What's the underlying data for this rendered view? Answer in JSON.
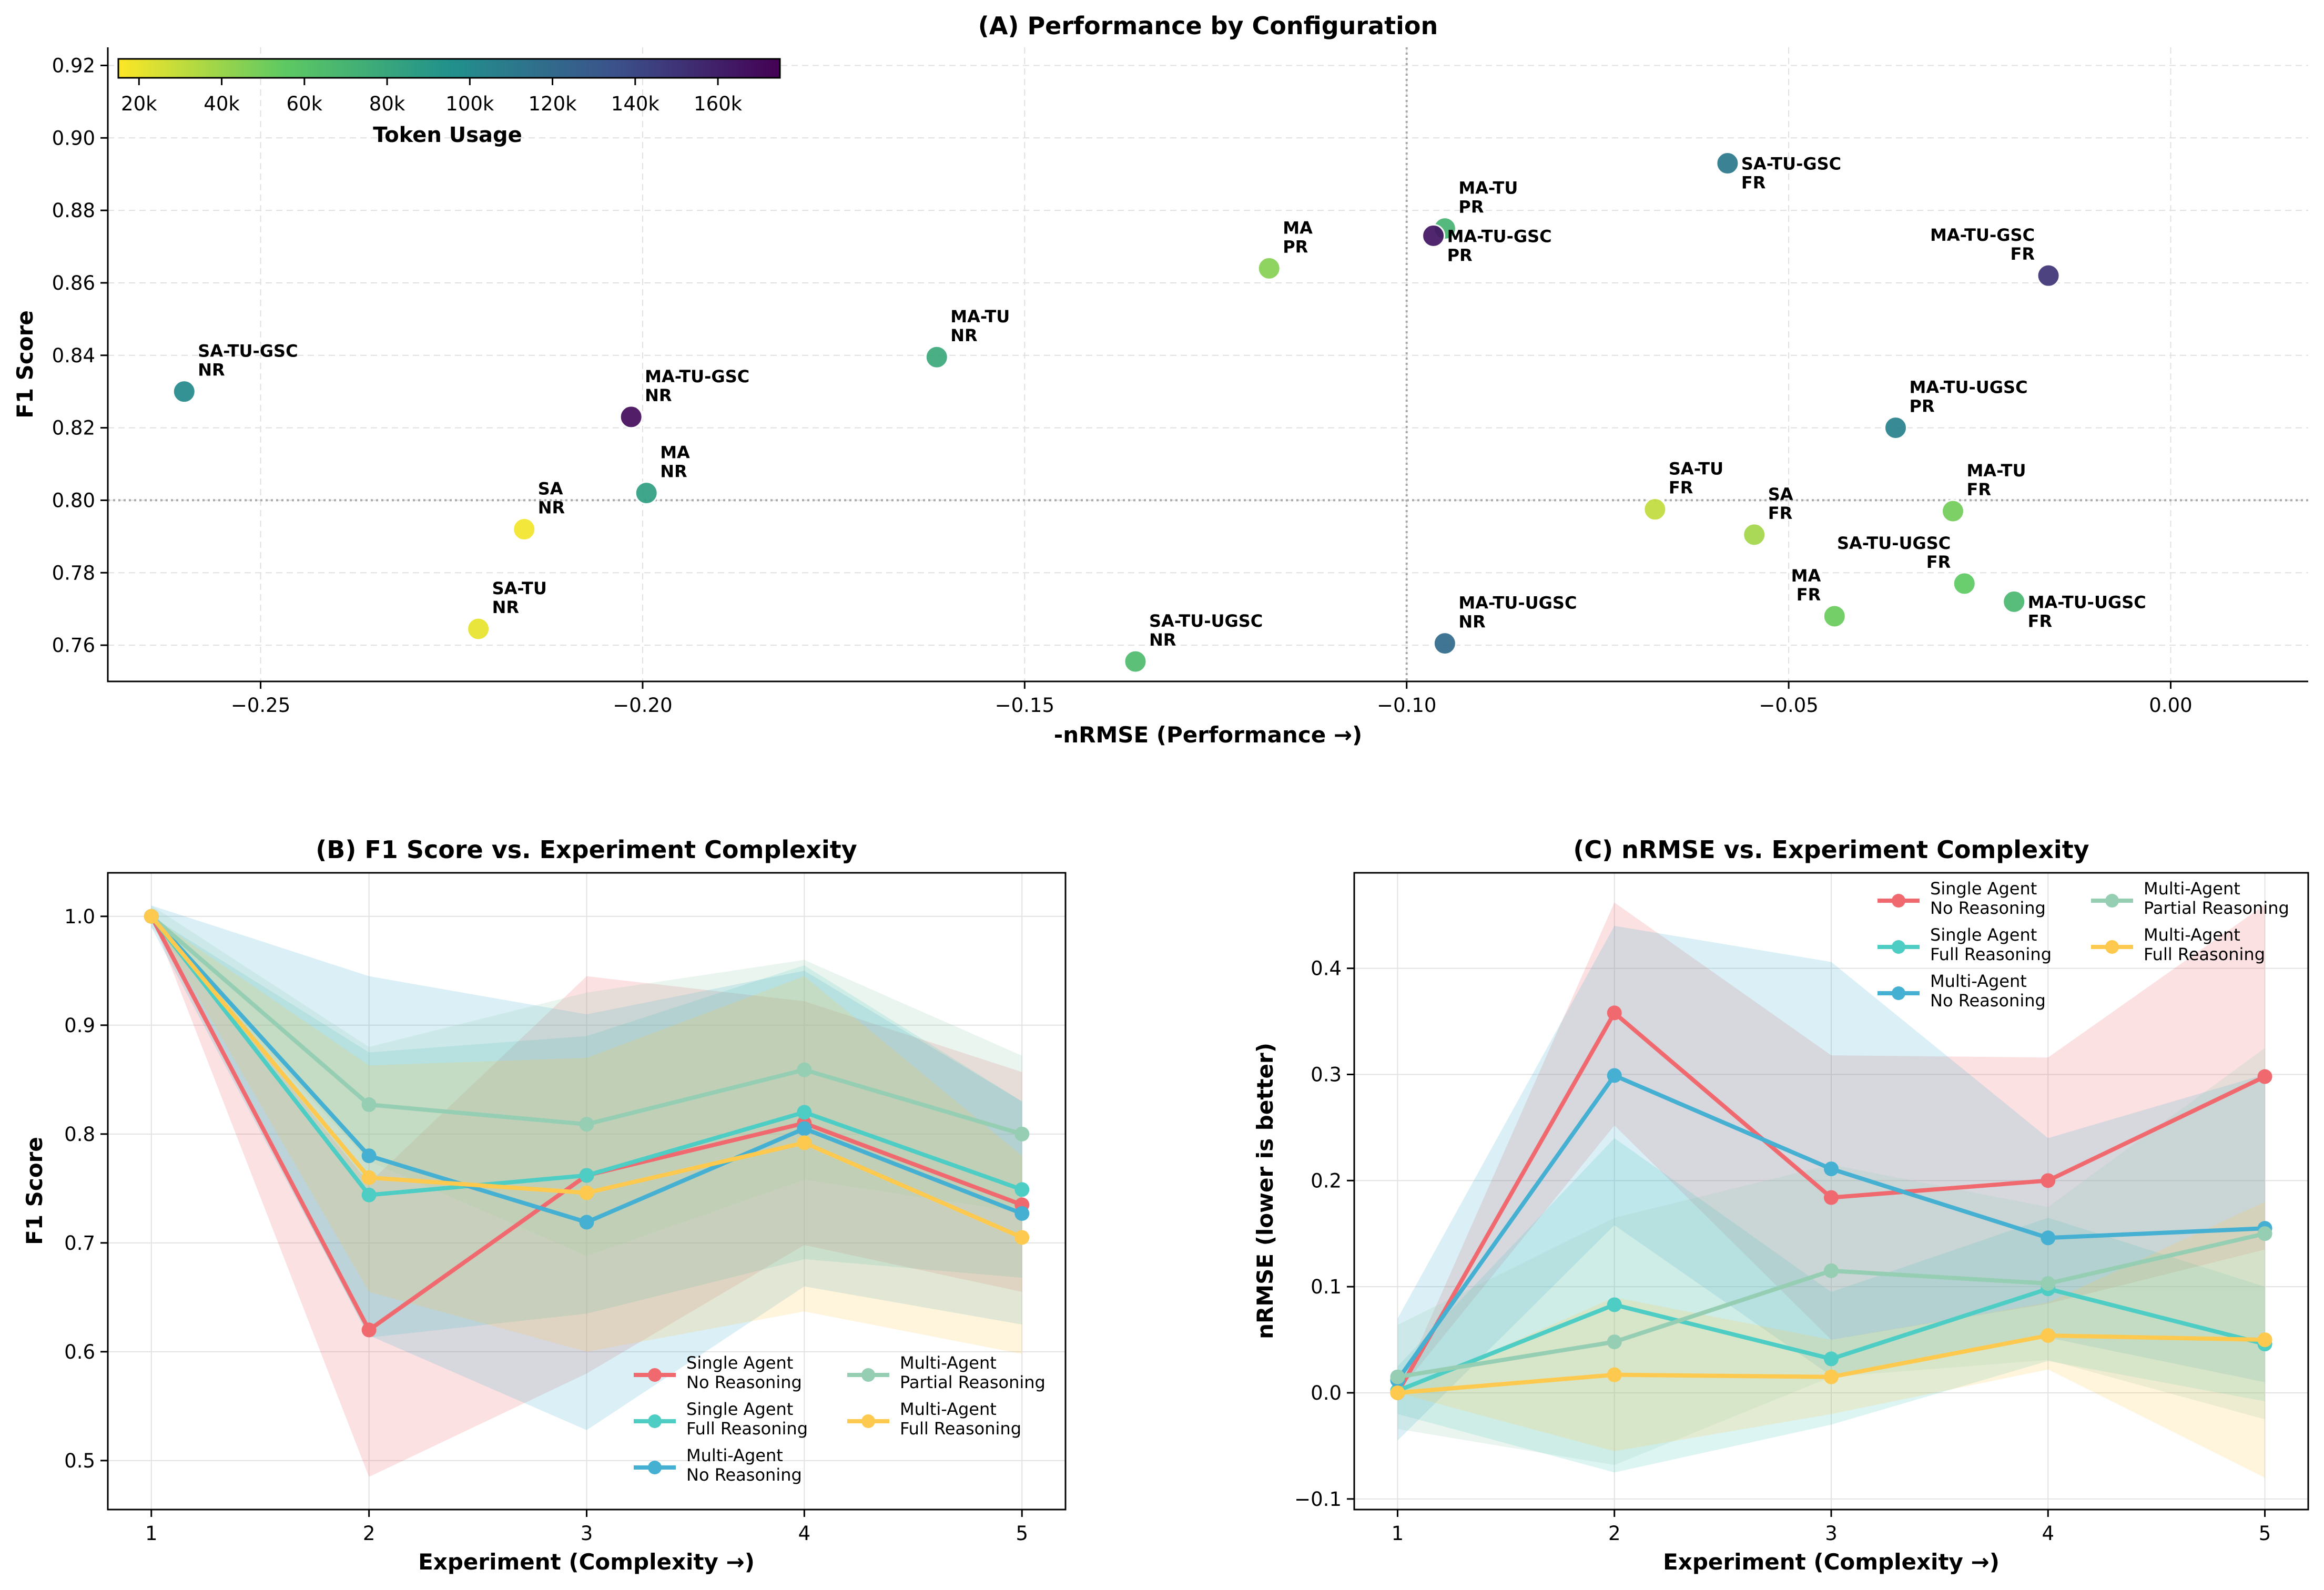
{
  "chart_data": [
    {
      "type": "scatter",
      "title": "(A) Performance by Configuration",
      "xlabel": "-nRMSE (Performance →)",
      "ylabel": "F1 Score",
      "xlim": [
        -0.27,
        0.018
      ],
      "ylim": [
        0.75,
        0.925
      ],
      "xticks": [
        -0.25,
        -0.2,
        -0.15,
        -0.1,
        -0.05,
        0.0
      ],
      "xtick_labels": [
        "−0.25",
        "−0.20",
        "−0.15",
        "−0.10",
        "−0.05",
        "0.00"
      ],
      "yticks": [
        0.76,
        0.78,
        0.8,
        0.82,
        0.84,
        0.86,
        0.88,
        0.9,
        0.92
      ],
      "ytick_labels": [
        "0.76",
        "0.78",
        "0.80",
        "0.82",
        "0.84",
        "0.86",
        "0.88",
        "0.90",
        "0.92"
      ],
      "reference_lines": {
        "x": -0.1,
        "y": 0.8
      },
      "colorbar": {
        "label": "Token Usage",
        "range": [
          15000,
          175000
        ],
        "ticks": [
          20000,
          40000,
          60000,
          80000,
          100000,
          120000,
          140000,
          160000
        ],
        "tick_labels": [
          "20k",
          "40k",
          "60k",
          "80k",
          "100k",
          "120k",
          "140k",
          "160k"
        ]
      },
      "points": [
        {
          "x": -0.26,
          "y": 0.83,
          "tokens": 100000,
          "l1": "SA-TU-GSC",
          "l2": "NR",
          "dx": 1,
          "dy": -1
        },
        {
          "x": -0.2015,
          "y": 0.823,
          "tokens": 170000,
          "l1": "MA-TU-GSC",
          "l2": "NR",
          "dx": 1,
          "dy": -1
        },
        {
          "x": -0.1995,
          "y": 0.802,
          "tokens": 85000,
          "l1": "MA",
          "l2": "NR",
          "dx": 1,
          "dy": -1
        },
        {
          "x": -0.2155,
          "y": 0.792,
          "tokens": 18000,
          "l1": "SA",
          "l2": "NR",
          "dx": 1,
          "dy": -1
        },
        {
          "x": -0.2215,
          "y": 0.7645,
          "tokens": 20000,
          "l1": "SA-TU",
          "l2": "NR",
          "dx": 1,
          "dy": -1
        },
        {
          "x": -0.1615,
          "y": 0.8395,
          "tokens": 78000,
          "l1": "MA-TU",
          "l2": "NR",
          "dx": 1,
          "dy": -1
        },
        {
          "x": -0.1355,
          "y": 0.7555,
          "tokens": 65000,
          "l1": "SA-TU-UGSC",
          "l2": "NR",
          "dx": 1,
          "dy": -1
        },
        {
          "x": -0.118,
          "y": 0.864,
          "tokens": 45000,
          "l1": "MA",
          "l2": "PR",
          "dx": 1,
          "dy": -1
        },
        {
          "x": -0.095,
          "y": 0.875,
          "tokens": 70000,
          "l1": "MA-TU",
          "l2": "PR",
          "dx": 1,
          "dy": -1
        },
        {
          "x": -0.0965,
          "y": 0.873,
          "tokens": 165000,
          "l1": "MA-TU-GSC",
          "l2": "PR",
          "dx": 1,
          "dy": 1
        },
        {
          "x": -0.095,
          "y": 0.7605,
          "tokens": 120000,
          "l1": "MA-TU-UGSC",
          "l2": "NR",
          "dx": 1,
          "dy": -1
        },
        {
          "x": -0.058,
          "y": 0.893,
          "tokens": 110000,
          "l1": "SA-TU-GSC",
          "l2": "FR",
          "dx": 1,
          "dy": 1
        },
        {
          "x": -0.016,
          "y": 0.862,
          "tokens": 150000,
          "l1": "MA-TU-GSC",
          "l2": "FR",
          "dx": -1,
          "dy": -1
        },
        {
          "x": -0.036,
          "y": 0.82,
          "tokens": 105000,
          "l1": "MA-TU-UGSC",
          "l2": "PR",
          "dx": 1,
          "dy": -1
        },
        {
          "x": -0.0675,
          "y": 0.7975,
          "tokens": 30000,
          "l1": "SA-TU",
          "l2": "FR",
          "dx": 1,
          "dy": -1
        },
        {
          "x": -0.0545,
          "y": 0.7905,
          "tokens": 38000,
          "l1": "SA",
          "l2": "FR",
          "dx": 1,
          "dy": -1
        },
        {
          "x": -0.0285,
          "y": 0.797,
          "tokens": 50000,
          "l1": "MA-TU",
          "l2": "FR",
          "dx": 1,
          "dy": -1
        },
        {
          "x": -0.027,
          "y": 0.777,
          "tokens": 55000,
          "l1": "SA-TU-UGSC",
          "l2": "FR",
          "dx": -1,
          "dy": -1
        },
        {
          "x": -0.044,
          "y": 0.768,
          "tokens": 52000,
          "l1": "MA",
          "l2": "FR",
          "dx": -1,
          "dy": -1
        },
        {
          "x": -0.0205,
          "y": 0.772,
          "tokens": 68000,
          "l1": "MA-TU-UGSC",
          "l2": "FR",
          "dx": 1,
          "dy": 1
        }
      ]
    },
    {
      "type": "line",
      "title": "(B) F1 Score vs. Experiment Complexity",
      "xlabel": "Experiment (Complexity →)",
      "ylabel": "F1 Score",
      "x": [
        1,
        2,
        3,
        4,
        5
      ],
      "xlim": [
        0.8,
        5.2
      ],
      "ylim": [
        0.455,
        1.04
      ],
      "yticks": [
        0.5,
        0.6,
        0.7,
        0.8,
        0.9,
        1.0
      ],
      "ytick_labels": [
        "0.5",
        "0.6",
        "0.7",
        "0.8",
        "0.9",
        "1.0"
      ],
      "series": [
        {
          "name": "Single Agent",
          "name2": "No Reasoning",
          "color": "#f0696e",
          "values": [
            1.0,
            0.62,
            0.762,
            0.81,
            0.735
          ],
          "upper": [
            1.0,
            0.755,
            0.945,
            0.922,
            0.857
          ],
          "lower": [
            1.0,
            0.485,
            0.58,
            0.698,
            0.655
          ]
        },
        {
          "name": "Single Agent",
          "name2": "Full Reasoning",
          "color": "#4ecdc4",
          "values": [
            1.0,
            0.744,
            0.762,
            0.82,
            0.749
          ],
          "upper": [
            1.0,
            0.875,
            0.89,
            0.955,
            0.83
          ],
          "lower": [
            1.0,
            0.613,
            0.635,
            0.685,
            0.668
          ]
        },
        {
          "name": "Multi-Agent",
          "name2": "No Reasoning",
          "color": "#45b0d1",
          "values": [
            1.0,
            0.78,
            0.719,
            0.805,
            0.727
          ],
          "upper": [
            1.01,
            0.945,
            0.91,
            0.95,
            0.83
          ],
          "lower": [
            0.99,
            0.615,
            0.528,
            0.66,
            0.625
          ]
        },
        {
          "name": "Multi-Agent",
          "name2": "Partial Reasoning",
          "color": "#96ceb4",
          "values": [
            1.0,
            0.827,
            0.809,
            0.859,
            0.8
          ],
          "upper": [
            1.01,
            0.88,
            0.93,
            0.96,
            0.872
          ],
          "lower": [
            0.99,
            0.775,
            0.688,
            0.758,
            0.728
          ]
        },
        {
          "name": "Multi-Agent",
          "name2": "Full Reasoning",
          "color": "#fdc94f",
          "values": [
            1.0,
            0.76,
            0.746,
            0.792,
            0.705
          ],
          "upper": [
            1.0,
            0.863,
            0.87,
            0.945,
            0.78
          ],
          "lower": [
            1.0,
            0.655,
            0.6,
            0.637,
            0.598
          ]
        }
      ]
    },
    {
      "type": "line",
      "title": "(C) nRMSE vs. Experiment Complexity",
      "xlabel": "Experiment (Complexity →)",
      "ylabel": "nRMSE (lower is better)",
      "x": [
        1,
        2,
        3,
        4,
        5
      ],
      "xlim": [
        0.8,
        5.2
      ],
      "ylim": [
        -0.11,
        0.49
      ],
      "yticks": [
        -0.1,
        0.0,
        0.1,
        0.2,
        0.3,
        0.4
      ],
      "ytick_labels": [
        "−0.1",
        "0.0",
        "0.1",
        "0.2",
        "0.3",
        "0.4"
      ],
      "series": [
        {
          "name": "Single Agent",
          "name2": "No Reasoning",
          "color": "#f0696e",
          "values": [
            0.0,
            0.358,
            0.184,
            0.2,
            0.298
          ],
          "upper": [
            0.0,
            0.462,
            0.318,
            0.316,
            0.46
          ],
          "lower": [
            0.0,
            0.252,
            0.05,
            0.084,
            0.135
          ]
        },
        {
          "name": "Single Agent",
          "name2": "Full Reasoning",
          "color": "#4ecdc4",
          "values": [
            0.002,
            0.083,
            0.032,
            0.098,
            0.046
          ],
          "upper": [
            0.025,
            0.24,
            0.095,
            0.165,
            0.1
          ],
          "lower": [
            -0.02,
            -0.075,
            -0.03,
            0.03,
            -0.008
          ]
        },
        {
          "name": "Multi-Agent",
          "name2": "No Reasoning",
          "color": "#45b0d1",
          "values": [
            0.012,
            0.299,
            0.211,
            0.146,
            0.155
          ],
          "upper": [
            0.07,
            0.44,
            0.406,
            0.24,
            0.3
          ],
          "lower": [
            -0.045,
            0.158,
            0.016,
            0.052,
            0.01
          ]
        },
        {
          "name": "Multi-Agent",
          "name2": "Partial Reasoning",
          "color": "#96ceb4",
          "values": [
            0.015,
            0.048,
            0.115,
            0.103,
            0.15
          ],
          "upper": [
            0.064,
            0.165,
            0.215,
            0.175,
            0.325
          ],
          "lower": [
            -0.034,
            -0.068,
            0.015,
            0.031,
            -0.025
          ]
        },
        {
          "name": "Multi-Agent",
          "name2": "Full Reasoning",
          "color": "#fdc94f",
          "values": [
            0.0,
            0.017,
            0.015,
            0.054,
            0.05
          ],
          "upper": [
            0.0,
            0.09,
            0.05,
            0.085,
            0.18
          ],
          "lower": [
            0.0,
            -0.055,
            -0.02,
            0.022,
            -0.08
          ]
        }
      ]
    }
  ]
}
